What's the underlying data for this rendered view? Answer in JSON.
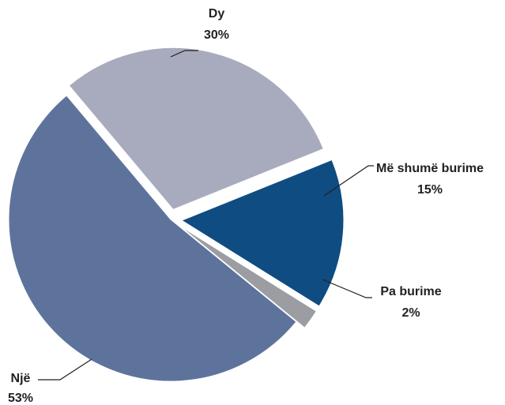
{
  "chart_data": {
    "type": "pie",
    "title": "",
    "exploded": true,
    "slices": [
      {
        "name": "Më shumë burime",
        "value": 15,
        "label": "Më shumë burime",
        "pct_label": "15%",
        "color": "#0f4c81"
      },
      {
        "name": "Pa burime",
        "value": 2,
        "label": "Pa burime",
        "pct_label": "2%",
        "color": "#9b9da3"
      },
      {
        "name": "Një",
        "value": 53,
        "label": "Një",
        "pct_label": "53%",
        "color": "#5e739c"
      },
      {
        "name": "Dy",
        "value": 30,
        "label": "Dy",
        "pct_label": "30%",
        "color": "#a8abbe"
      }
    ]
  }
}
